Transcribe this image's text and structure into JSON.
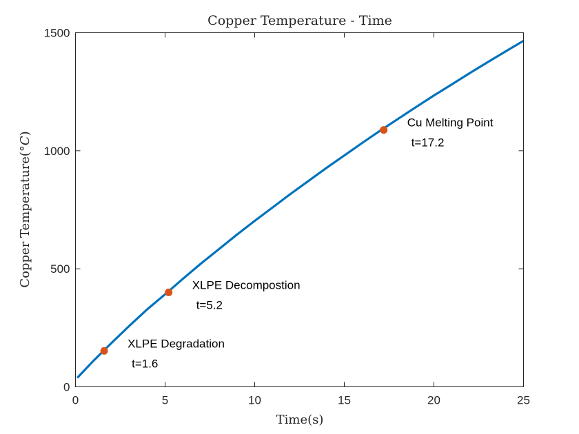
{
  "chart_data": {
    "type": "line",
    "title": "Copper Temperature - Time",
    "xlabel": "Time(s)",
    "ylabel_prefix": "Copper Temperature(",
    "ylabel_symbol": "°C",
    "ylabel_suffix": ")",
    "xlim": [
      0,
      25
    ],
    "ylim": [
      0,
      1500
    ],
    "xticks": [
      0,
      5,
      10,
      15,
      20,
      25
    ],
    "yticks": [
      0,
      500,
      1000,
      1500
    ],
    "grid": false,
    "line_color": "#0072BD",
    "marker_color": "#D95319",
    "series": [
      {
        "x": [
          0.1,
          1,
          2,
          3,
          4,
          5,
          6,
          7,
          8,
          9,
          10,
          11,
          12,
          13,
          14,
          15,
          16,
          17,
          18,
          19,
          20,
          21,
          22,
          23,
          24,
          25
        ],
        "y": [
          38,
          110,
          185,
          258,
          328,
          392,
          458,
          522,
          583,
          644,
          703,
          760,
          817,
          872,
          927,
          980,
          1033,
          1085,
          1135,
          1185,
          1234,
          1281,
          1329,
          1375,
          1421,
          1466
        ]
      }
    ],
    "annotations": [
      {
        "x": 1.6,
        "y": 152,
        "label": "XLPE Degradation",
        "time_label": "t=1.6"
      },
      {
        "x": 5.2,
        "y": 400,
        "label": "XLPE Decompostion",
        "time_label": "t=5.2"
      },
      {
        "x": 17.2,
        "y": 1088,
        "label": "Cu Melting Point",
        "time_label": "t=17.2"
      }
    ]
  }
}
